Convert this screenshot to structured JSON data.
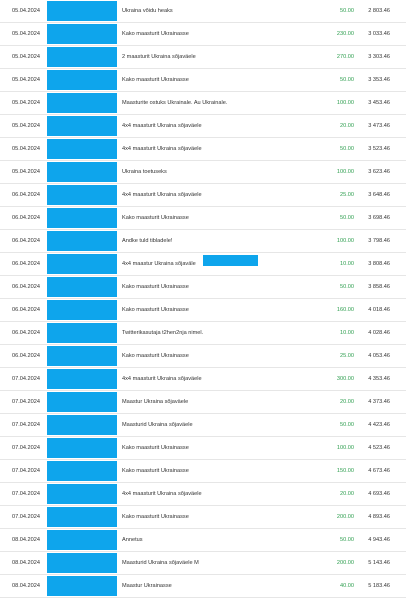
{
  "table": {
    "rows": [
      [
        "05.04.2024",
        "Ukraina võidu heaks",
        "50.00",
        "2 803.46"
      ],
      [
        "05.04.2024",
        "Kako maasturit Ukrainasse",
        "230.00",
        "3 033.46"
      ],
      [
        "05.04.2024",
        "2 maasturit Ukraina sõjaväele",
        "270.00",
        "3 303.46"
      ],
      [
        "05.04.2024",
        "Kako maasturit Ukrainasse",
        "50.00",
        "3 353.46"
      ],
      [
        "05.04.2024",
        "Maasturite ostuks Ukrainale. Au Ukrainale.",
        "100.00",
        "3 453.46"
      ],
      [
        "05.04.2024",
        "4x4 maasturit Ukraina sõjaväele",
        "20.00",
        "3 473.46"
      ],
      [
        "05.04.2024",
        "4x4 maasturit Ukraina sõjaväele",
        "50.00",
        "3 523.46"
      ],
      [
        "05.04.2024",
        "Ukraina toetuseks",
        "100.00",
        "3 623.46"
      ],
      [
        "06.04.2024",
        "4x4 maasturit Ukraina sõjaväele",
        "25.00",
        "3 648.46"
      ],
      [
        "06.04.2024",
        "Kako maasturit Ukrainasse",
        "50.00",
        "3 698.46"
      ],
      [
        "06.04.2024",
        "Andke tuld tibladele!",
        "100.00",
        "3 798.46"
      ],
      [
        "06.04.2024",
        "4x4 maastur Ukraina sõjaväle",
        "10.00",
        "3 808.46"
      ],
      [
        "06.04.2024",
        "Kako maasturit Ukrainasse",
        "50.00",
        "3 858.46"
      ],
      [
        "06.04.2024",
        "Kako maasturit Ukrainasse",
        "160.00",
        "4 018.46"
      ],
      [
        "06.04.2024",
        "Twitterikasutaja t2hen2nja nimel.",
        "10.00",
        "4 028.46"
      ],
      [
        "06.04.2024",
        "Kako maasturit Ukrainasse",
        "25.00",
        "4 053.46"
      ],
      [
        "07.04.2024",
        "4x4 maasturit Ukraina sõjaväele",
        "300.00",
        "4 353.46"
      ],
      [
        "07.04.2024",
        "Maastur Ukraina sõjaväele",
        "20.00",
        "4 373.46"
      ],
      [
        "07.04.2024",
        "Maasturid Ukraina sõjaväele",
        "50.00",
        "4 423.46"
      ],
      [
        "07.04.2024",
        "Kako maasturit Ukrainasse",
        "100.00",
        "4 523.46"
      ],
      [
        "07.04.2024",
        "Kako maasturit Ukrainasse",
        "150.00",
        "4 673.46"
      ],
      [
        "07.04.2024",
        "4x4 maasturit Ukraina sõjaväele",
        "20.00",
        "4 693.46"
      ],
      [
        "07.04.2024",
        "Kako maasturit Ukrainasse",
        "200.00",
        "4 893.46"
      ],
      [
        "08.04.2024",
        "Annetus",
        "50.00",
        "4 943.46"
      ],
      [
        "08.04.2024",
        "Maasturid Ukraina sõjaväele M",
        "200.00",
        "5 143.46"
      ],
      [
        "08.04.2024",
        "Maastur Ukrainasse",
        "40.00",
        "5 183.46"
      ]
    ]
  }
}
